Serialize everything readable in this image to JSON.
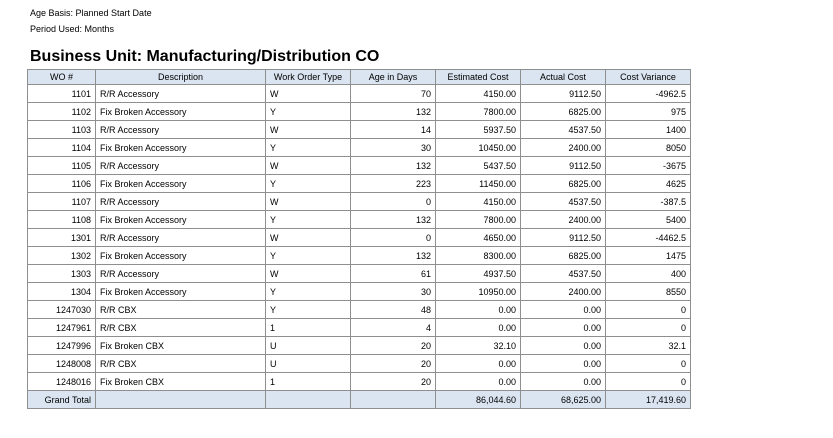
{
  "header": {
    "age_basis": "Age Basis: Planned Start Date",
    "period_used": "Period Used: Months",
    "title": "Business Unit: Manufacturing/Distribution CO"
  },
  "table": {
    "columns": [
      "WO #",
      "Description",
      "Work Order Type",
      "Age in Days",
      "Estimated Cost",
      "Actual Cost",
      "Cost Variance"
    ],
    "rows": [
      [
        "1101",
        "R/R Accessory",
        "W",
        "70",
        "4150.00",
        "9112.50",
        "-4962.5"
      ],
      [
        "1102",
        "Fix Broken Accessory",
        "Y",
        "132",
        "7800.00",
        "6825.00",
        "975"
      ],
      [
        "1103",
        "R/R Accessory",
        "W",
        "14",
        "5937.50",
        "4537.50",
        "1400"
      ],
      [
        "1104",
        "Fix Broken Accessory",
        "Y",
        "30",
        "10450.00",
        "2400.00",
        "8050"
      ],
      [
        "1105",
        "R/R Accessory",
        "W",
        "132",
        "5437.50",
        "9112.50",
        "-3675"
      ],
      [
        "1106",
        "Fix Broken Accessory",
        "Y",
        "223",
        "11450.00",
        "6825.00",
        "4625"
      ],
      [
        "1107",
        "R/R Accessory",
        "W",
        "0",
        "4150.00",
        "4537.50",
        "-387.5"
      ],
      [
        "1108",
        "Fix Broken Accessory",
        "Y",
        "132",
        "7800.00",
        "2400.00",
        "5400"
      ],
      [
        "1301",
        "R/R Accessory",
        "W",
        "0",
        "4650.00",
        "9112.50",
        "-4462.5"
      ],
      [
        "1302",
        "Fix Broken Accessory",
        "Y",
        "132",
        "8300.00",
        "6825.00",
        "1475"
      ],
      [
        "1303",
        "R/R Accessory",
        "W",
        "61",
        "4937.50",
        "4537.50",
        "400"
      ],
      [
        "1304",
        "Fix Broken Accessory",
        "Y",
        "30",
        "10950.00",
        "2400.00",
        "8550"
      ],
      [
        "1247030",
        "R/R CBX",
        "Y",
        "48",
        "0.00",
        "0.00",
        "0"
      ],
      [
        "1247961",
        "R/R CBX",
        "1",
        "4",
        "0.00",
        "0.00",
        "0"
      ],
      [
        "1247996",
        "Fix Broken CBX",
        "U",
        "20",
        "32.10",
        "0.00",
        "32.1"
      ],
      [
        "1248008",
        "R/R CBX",
        "U",
        "20",
        "0.00",
        "0.00",
        "0"
      ],
      [
        "1248016",
        "Fix Broken CBX",
        "1",
        "20",
        "0.00",
        "0.00",
        "0"
      ]
    ],
    "total": {
      "label": "Grand Total",
      "estimated_cost": "86,044.60",
      "actual_cost": "68,625.00",
      "cost_variance": "17,419.60"
    }
  }
}
